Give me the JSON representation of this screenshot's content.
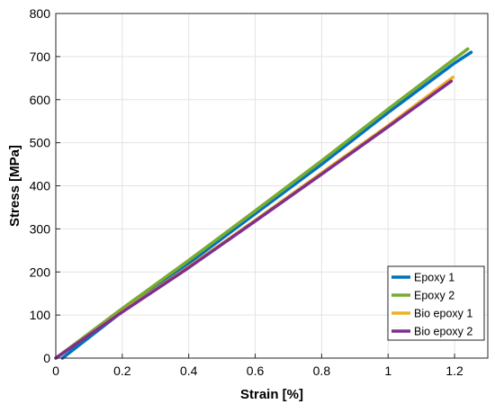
{
  "chart_data": {
    "type": "line",
    "xlabel": "Strain [%]",
    "ylabel": "Stress [MPa]",
    "xlim": [
      0,
      1.3
    ],
    "ylim": [
      0,
      800
    ],
    "xticks": [
      0,
      0.2,
      0.4,
      0.6,
      0.8,
      1,
      1.2
    ],
    "xtick_labels": [
      "0",
      "0.2",
      "0.4",
      "0.6",
      "0.8",
      "1",
      "1.2"
    ],
    "yticks": [
      0,
      100,
      200,
      300,
      400,
      500,
      600,
      700,
      800
    ],
    "ytick_labels": [
      "0",
      "100",
      "200",
      "300",
      "400",
      "500",
      "600",
      "700",
      "800"
    ],
    "grid": true,
    "legend_position": "bottom-right",
    "series": [
      {
        "name": "Epoxy 1",
        "color": "#0072BD",
        "x": [
          0.02,
          0.2,
          0.4,
          0.6,
          0.8,
          1.0,
          1.2,
          1.25
        ],
        "y": [
          0,
          108,
          220,
          335,
          450,
          570,
          685,
          710
        ]
      },
      {
        "name": "Epoxy 2",
        "color": "#77AC30",
        "x": [
          0.0,
          0.2,
          0.4,
          0.6,
          0.8,
          1.0,
          1.2,
          1.24
        ],
        "y": [
          0,
          115,
          227,
          342,
          458,
          578,
          695,
          718
        ]
      },
      {
        "name": "Bio epoxy 1",
        "color": "#EDB120",
        "x": [
          0.0,
          0.2,
          0.4,
          0.6,
          0.8,
          1.0,
          1.195
        ],
        "y": [
          0,
          108,
          212,
          320,
          430,
          540,
          652
        ]
      },
      {
        "name": "Bio epoxy 2",
        "color": "#7E2F8E",
        "x": [
          0.0,
          0.2,
          0.4,
          0.6,
          0.8,
          1.0,
          1.19
        ],
        "y": [
          0,
          107,
          210,
          318,
          427,
          537,
          643
        ]
      }
    ]
  }
}
